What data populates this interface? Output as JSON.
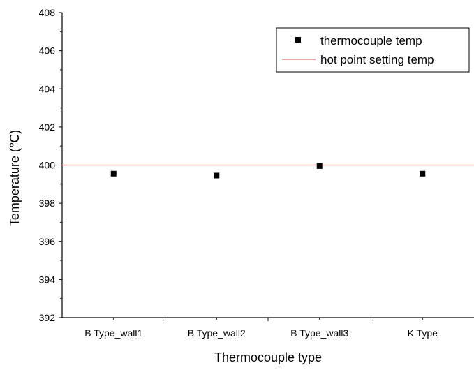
{
  "chart_data": {
    "type": "scatter",
    "title": "",
    "xlabel": "Thermocouple type",
    "ylabel": "Temperature (℃)",
    "categories": [
      "B Type_wall1",
      "B Type_wall2",
      "B Type_wall3",
      "K Type"
    ],
    "ylim": [
      392,
      408
    ],
    "yticks": [
      "392",
      "394",
      "396",
      "398",
      "400",
      "402",
      "404",
      "406",
      "408"
    ],
    "series": [
      {
        "name": "thermocouple temp",
        "marker": "square",
        "color": "#000000",
        "values": [
          399.55,
          399.45,
          399.95,
          399.55
        ]
      }
    ],
    "reference_lines": [
      {
        "name": "hot point setting temp",
        "y": 400,
        "color": "#e8787e"
      }
    ],
    "legend": "top-right",
    "grid": false
  }
}
